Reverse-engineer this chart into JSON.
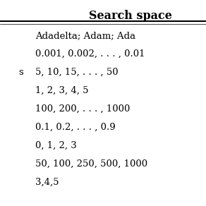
{
  "title": "Search space",
  "left_col_partial": [
    "",
    "",
    "s",
    "",
    "",
    "",
    "",
    "",
    ""
  ],
  "right_col": [
    "Adadelta; Adam; Ada",
    "0.001, 0.002, . . . , 0.01",
    "5, 10, 15, . . . , 50",
    "1, 2, 3, 4, 5",
    "100, 200, . . . , 1000",
    "0.1, 0.2, . . . , 0.9",
    "0, 1, 2, 3",
    "50, 100, 250, 500, 1000",
    "3,4,5"
  ],
  "bg_color": "white",
  "header_line_color": "black",
  "font_size": 9.5,
  "header_font_size": 11.5,
  "fig_width": 2.92,
  "fig_height": 2.92,
  "dpi": 100
}
